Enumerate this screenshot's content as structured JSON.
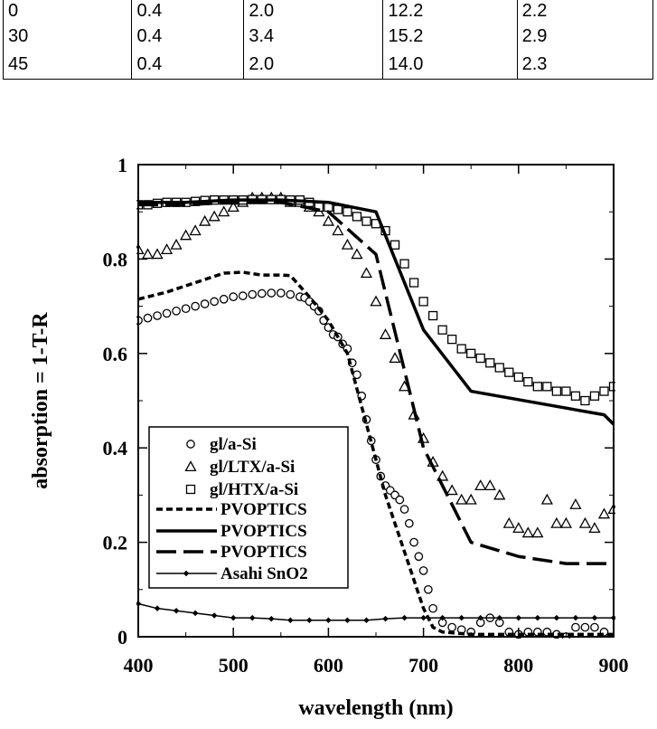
{
  "table": {
    "rows": [
      [
        "0",
        "0.4",
        "2.0",
        "12.2",
        "2.2"
      ],
      [
        "30",
        "0.4",
        "3.4",
        "15.2",
        "2.9"
      ],
      [
        "45",
        "0.4",
        "2.0",
        "14.0",
        "2.3"
      ]
    ]
  },
  "chart_data": {
    "type": "line",
    "title": "",
    "xlabel": "wavelength (nm)",
    "ylabel": "absorption = 1-T-R",
    "xlim": [
      400,
      900
    ],
    "ylim": [
      0,
      1
    ],
    "xticks": [
      400,
      500,
      600,
      700,
      800,
      900
    ],
    "yticks": [
      0,
      0.2,
      0.4,
      0.6,
      0.8,
      1
    ],
    "ytick_labels": [
      "0",
      "0.2",
      "0.4",
      "0.6",
      "0.8",
      "1"
    ],
    "grid": false,
    "legend_position": "lower-left",
    "series": [
      {
        "name": "gl/a-Si",
        "style": "open-circle",
        "x": [
          400,
          410,
          420,
          430,
          440,
          450,
          460,
          470,
          480,
          490,
          500,
          510,
          520,
          530,
          540,
          550,
          560,
          570,
          575,
          580,
          585,
          590,
          595,
          600,
          605,
          610,
          615,
          620,
          625,
          630,
          635,
          640,
          645,
          650,
          655,
          660,
          665,
          670,
          675,
          680,
          685,
          690,
          695,
          700,
          705,
          710,
          720,
          730,
          740,
          750,
          760,
          770,
          780,
          790,
          800,
          810,
          820,
          830,
          840,
          850,
          860,
          870,
          880,
          890
        ],
        "y": [
          0.67,
          0.675,
          0.68,
          0.685,
          0.69,
          0.695,
          0.7,
          0.705,
          0.71,
          0.715,
          0.72,
          0.722,
          0.725,
          0.727,
          0.728,
          0.728,
          0.725,
          0.72,
          0.718,
          0.71,
          0.7,
          0.69,
          0.67,
          0.655,
          0.64,
          0.635,
          0.62,
          0.61,
          0.58,
          0.555,
          0.51,
          0.46,
          0.415,
          0.375,
          0.34,
          0.32,
          0.31,
          0.3,
          0.29,
          0.27,
          0.24,
          0.2,
          0.17,
          0.14,
          0.1,
          0.06,
          0.03,
          0.02,
          0.015,
          0.01,
          0.03,
          0.04,
          0.03,
          0.01,
          0.005,
          0.01,
          0.01,
          0.01,
          0.005,
          0.0,
          0.02,
          0.02,
          0.02,
          0.01
        ]
      },
      {
        "name": "gl/LTX/a-Si",
        "style": "open-triangle",
        "x": [
          400,
          410,
          420,
          430,
          440,
          450,
          460,
          470,
          480,
          490,
          500,
          510,
          520,
          530,
          540,
          550,
          560,
          570,
          580,
          590,
          600,
          610,
          620,
          630,
          640,
          650,
          660,
          670,
          680,
          690,
          700,
          710,
          720,
          730,
          740,
          750,
          760,
          770,
          780,
          790,
          800,
          810,
          820,
          830,
          840,
          850,
          860,
          870,
          880,
          890,
          900
        ],
        "y": [
          0.82,
          0.81,
          0.81,
          0.82,
          0.83,
          0.85,
          0.86,
          0.88,
          0.89,
          0.9,
          0.91,
          0.92,
          0.93,
          0.93,
          0.93,
          0.93,
          0.92,
          0.92,
          0.91,
          0.9,
          0.88,
          0.86,
          0.83,
          0.81,
          0.77,
          0.71,
          0.64,
          0.59,
          0.53,
          0.47,
          0.42,
          0.37,
          0.34,
          0.31,
          0.29,
          0.29,
          0.32,
          0.32,
          0.3,
          0.24,
          0.23,
          0.22,
          0.22,
          0.29,
          0.24,
          0.24,
          0.28,
          0.24,
          0.23,
          0.26,
          0.27
        ]
      },
      {
        "name": "gl/HTX/a-Si",
        "style": "open-square",
        "x": [
          400,
          410,
          420,
          430,
          440,
          450,
          460,
          470,
          480,
          490,
          500,
          510,
          520,
          530,
          540,
          550,
          560,
          570,
          580,
          590,
          600,
          610,
          620,
          630,
          640,
          650,
          660,
          670,
          680,
          690,
          700,
          710,
          720,
          730,
          740,
          750,
          760,
          770,
          780,
          790,
          800,
          810,
          820,
          830,
          840,
          850,
          860,
          870,
          880,
          890,
          900
        ],
        "y": [
          0.915,
          0.915,
          0.918,
          0.92,
          0.92,
          0.92,
          0.922,
          0.924,
          0.925,
          0.925,
          0.925,
          0.925,
          0.926,
          0.926,
          0.926,
          0.926,
          0.925,
          0.925,
          0.92,
          0.91,
          0.91,
          0.905,
          0.9,
          0.89,
          0.88,
          0.875,
          0.86,
          0.83,
          0.79,
          0.75,
          0.71,
          0.68,
          0.65,
          0.63,
          0.61,
          0.6,
          0.59,
          0.58,
          0.57,
          0.56,
          0.55,
          0.54,
          0.53,
          0.53,
          0.52,
          0.52,
          0.51,
          0.5,
          0.51,
          0.52,
          0.53
        ]
      },
      {
        "name": "PVOPTICS",
        "style": "short-dash",
        "x": [
          400,
          430,
          460,
          490,
          510,
          530,
          550,
          560,
          580,
          600,
          620,
          640,
          660,
          680,
          700,
          710,
          720,
          750,
          900
        ],
        "y": [
          0.715,
          0.73,
          0.75,
          0.77,
          0.772,
          0.766,
          0.766,
          0.765,
          0.72,
          0.67,
          0.6,
          0.45,
          0.3,
          0.18,
          0.06,
          0.02,
          0.01,
          0.005,
          0.005
        ]
      },
      {
        "name": "PVOPTICS",
        "style": "solid",
        "x": [
          400,
          450,
          500,
          550,
          600,
          650,
          700,
          750,
          890,
          900
        ],
        "y": [
          0.92,
          0.92,
          0.925,
          0.925,
          0.92,
          0.9,
          0.65,
          0.52,
          0.47,
          0.45
        ]
      },
      {
        "name": "PVOPTICS",
        "style": "long-dash",
        "x": [
          400,
          450,
          500,
          550,
          600,
          650,
          700,
          750,
          800,
          850,
          900
        ],
        "y": [
          0.915,
          0.915,
          0.92,
          0.92,
          0.9,
          0.81,
          0.4,
          0.2,
          0.17,
          0.155,
          0.155
        ]
      },
      {
        "name": "Asahi SnO2",
        "style": "thin-line-diamond",
        "x": [
          400,
          420,
          440,
          460,
          480,
          500,
          520,
          540,
          560,
          580,
          600,
          620,
          640,
          660,
          680,
          700,
          720,
          740,
          760,
          780,
          800,
          820,
          840,
          860,
          880,
          900
        ],
        "y": [
          0.07,
          0.06,
          0.055,
          0.05,
          0.045,
          0.04,
          0.04,
          0.038,
          0.035,
          0.035,
          0.035,
          0.035,
          0.035,
          0.038,
          0.04,
          0.04,
          0.04,
          0.04,
          0.04,
          0.04,
          0.04,
          0.04,
          0.04,
          0.04,
          0.04,
          0.04
        ]
      }
    ]
  }
}
